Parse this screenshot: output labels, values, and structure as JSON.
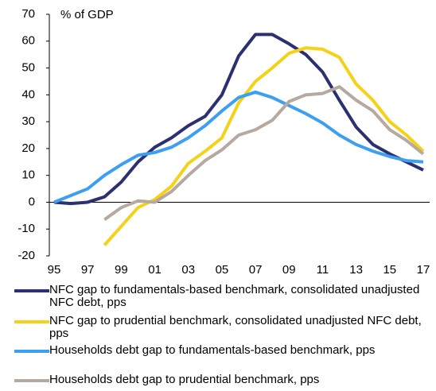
{
  "chart_data": {
    "type": "line",
    "annotation": "% of GDP",
    "categories": [
      "95",
      null,
      "97",
      null,
      "99",
      null,
      "01",
      null,
      "03",
      null,
      "05",
      null,
      "07",
      null,
      "09",
      null,
      "11",
      null,
      "13",
      null,
      "15",
      null,
      "17"
    ],
    "ylim": [
      -20,
      70
    ],
    "yticks": [
      -20,
      -10,
      0,
      10,
      20,
      30,
      40,
      50,
      60,
      70
    ],
    "grid": false,
    "legend": "bottom",
    "series": [
      {
        "name": "NFC gap to fundamentals-based benchmark, consolidated unadjusted NFC debt, pps",
        "color": "#2b3170",
        "values": [
          0,
          -0.5,
          0,
          2,
          7.5,
          15,
          20.5,
          24,
          28.5,
          32,
          40,
          54.5,
          62.5,
          62.5,
          59,
          55,
          48.5,
          38,
          28,
          21.5,
          18,
          15,
          12
        ]
      },
      {
        "name": "NFC gap to prudential benchmark, consolidated unadjusted NFC debt, pps",
        "color": "#f5d219",
        "values": [
          null,
          null,
          null,
          -16,
          -9,
          -2,
          1,
          6,
          14.5,
          19,
          24,
          37,
          45,
          50,
          55.5,
          57.5,
          57,
          54,
          44,
          38,
          30,
          25,
          19
        ]
      },
      {
        "name": "Households debt gap to fundamentals-based benchmark, pps",
        "color": "#3d9ff0",
        "values": [
          0,
          2.5,
          5,
          10,
          14,
          17.5,
          18.5,
          20.5,
          24,
          28.5,
          34,
          39,
          41,
          39,
          36,
          33,
          29.5,
          25,
          21.5,
          19,
          17,
          15.5,
          15
        ]
      },
      {
        "name": "Households debt gap to prudential benchmark, pps",
        "color": "#b5a9a0",
        "values": [
          null,
          null,
          null,
          -6.5,
          -2,
          0.5,
          0,
          4,
          10,
          15.5,
          19.5,
          25,
          27,
          30.5,
          37.5,
          40,
          40.5,
          43,
          38,
          34,
          27,
          23,
          18
        ]
      }
    ]
  }
}
